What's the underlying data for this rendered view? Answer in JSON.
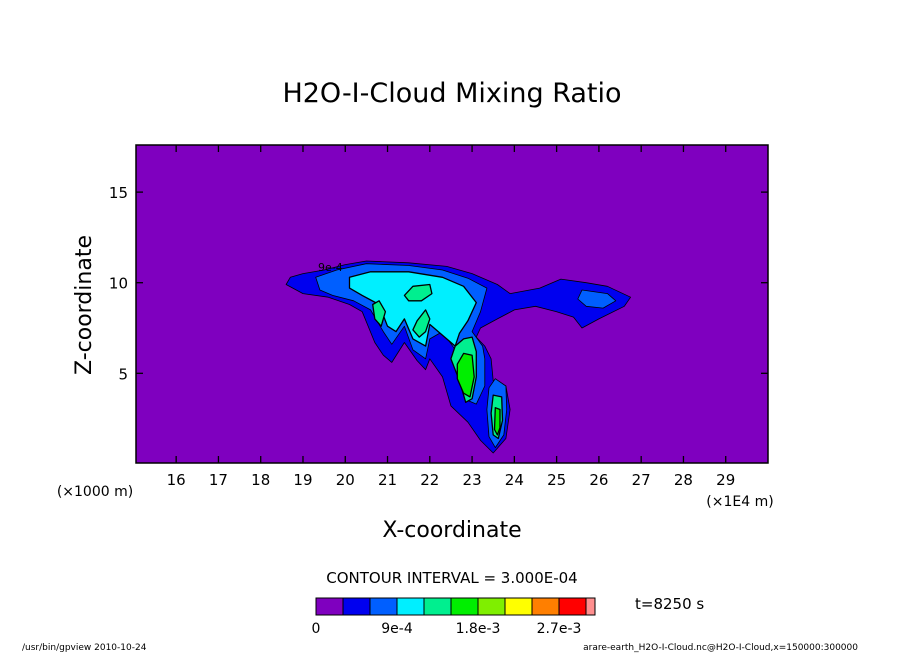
{
  "chart_data": {
    "type": "heatmap",
    "title": "H2O-I-Cloud Mixing Ratio",
    "xlabel": "X-coordinate",
    "ylabel": "Z-coordinate",
    "x_scale_label": "(×1E4 m)",
    "y_scale_label": "(×1000 m)",
    "xlim": [
      15.05,
      30.0
    ],
    "ylim": [
      0.05,
      17.6
    ],
    "x_ticks": [
      16,
      17,
      18,
      19,
      20,
      21,
      22,
      23,
      24,
      25,
      26,
      27,
      28,
      29
    ],
    "y_ticks": [
      5,
      10,
      15
    ],
    "contour_interval_text": "CONTOUR INTERVAL = 3.000E-04",
    "contour_label_text": "9e-4",
    "time_label": "t=8250 s",
    "levels": [
      0,
      0.0003,
      0.0006,
      0.0009,
      0.0012,
      0.0015,
      0.0018,
      0.0021,
      0.0024,
      0.0027,
      0.003
    ],
    "colors": [
      "#7f00bf",
      "#0000ef",
      "#005fff",
      "#00efff",
      "#00ef8f",
      "#00ef00",
      "#7fef00",
      "#ffff00",
      "#ff7f00",
      "#ff0000",
      "#ff8f8f"
    ],
    "colorbar_tick_labels": [
      "0",
      "9e-4",
      "1.8e-3",
      "2.7e-3"
    ],
    "footer_left": "/usr/bin/gpview   2010-10-24",
    "footer_right": "arare-earth_H2O-I-Cloud.nc@H2O-I-Cloud,x=150000:300000",
    "regions": [
      {
        "level": 1,
        "name": "cloud-anvil-outer",
        "points": [
          [
            18.6,
            9.9
          ],
          [
            18.7,
            10.3
          ],
          [
            19.0,
            10.5
          ],
          [
            19.5,
            10.7
          ],
          [
            20.0,
            11.0
          ],
          [
            20.5,
            11.2
          ],
          [
            21.5,
            11.1
          ],
          [
            22.4,
            10.9
          ],
          [
            23.0,
            10.5
          ],
          [
            23.6,
            9.9
          ],
          [
            23.9,
            9.4
          ],
          [
            24.6,
            9.7
          ],
          [
            25.1,
            10.2
          ],
          [
            25.7,
            10.0
          ],
          [
            26.2,
            9.8
          ],
          [
            26.75,
            9.2
          ],
          [
            26.6,
            8.7
          ],
          [
            26.0,
            8.0
          ],
          [
            25.6,
            7.5
          ],
          [
            25.4,
            8.1
          ],
          [
            25.0,
            8.4
          ],
          [
            24.5,
            8.7
          ],
          [
            24.0,
            8.5
          ],
          [
            23.6,
            8.0
          ],
          [
            23.2,
            7.5
          ],
          [
            23.1,
            7.0
          ],
          [
            23.3,
            6.5
          ],
          [
            23.45,
            5.8
          ],
          [
            23.5,
            4.6
          ],
          [
            23.8,
            4.3
          ],
          [
            23.9,
            3.0
          ],
          [
            23.8,
            1.4
          ],
          [
            23.5,
            0.6
          ],
          [
            23.2,
            1.3
          ],
          [
            22.9,
            2.3
          ],
          [
            22.5,
            3.2
          ],
          [
            22.3,
            4.8
          ],
          [
            22.0,
            5.8
          ],
          [
            21.9,
            5.2
          ],
          [
            21.7,
            5.7
          ],
          [
            21.4,
            6.7
          ],
          [
            21.1,
            5.6
          ],
          [
            20.9,
            6.0
          ],
          [
            20.7,
            6.7
          ],
          [
            20.4,
            8.4
          ],
          [
            20.1,
            8.8
          ],
          [
            19.6,
            9.2
          ],
          [
            19.0,
            9.4
          ]
        ]
      },
      {
        "level": 2,
        "name": "cloud-band-2",
        "points": [
          [
            19.3,
            10.3
          ],
          [
            19.8,
            10.7
          ],
          [
            20.5,
            11.05
          ],
          [
            21.5,
            10.95
          ],
          [
            22.3,
            10.7
          ],
          [
            22.9,
            10.25
          ],
          [
            23.35,
            9.7
          ],
          [
            23.2,
            8.4
          ],
          [
            23.0,
            7.3
          ],
          [
            23.25,
            6.5
          ],
          [
            23.3,
            5.8
          ],
          [
            23.3,
            4.3
          ],
          [
            23.1,
            3.3
          ],
          [
            22.9,
            3.5
          ],
          [
            22.7,
            5.0
          ],
          [
            22.6,
            6.3
          ],
          [
            22.3,
            7.3
          ],
          [
            22.0,
            6.9
          ],
          [
            21.9,
            5.8
          ],
          [
            21.6,
            6.3
          ],
          [
            21.4,
            7.6
          ],
          [
            21.1,
            6.6
          ],
          [
            20.9,
            7.3
          ],
          [
            20.6,
            8.5
          ],
          [
            20.2,
            9.0
          ],
          [
            19.7,
            9.3
          ],
          [
            19.4,
            9.6
          ]
        ]
      },
      {
        "level": 2,
        "name": "cloud-column-lower",
        "points": [
          [
            23.55,
            4.7
          ],
          [
            23.8,
            4.3
          ],
          [
            23.82,
            3.0
          ],
          [
            23.75,
            1.6
          ],
          [
            23.55,
            0.9
          ],
          [
            23.4,
            1.5
          ],
          [
            23.35,
            3.0
          ],
          [
            23.4,
            4.2
          ]
        ]
      },
      {
        "level": 2,
        "name": "cloud-anvil-tail",
        "points": [
          [
            25.6,
            9.6
          ],
          [
            26.2,
            9.4
          ],
          [
            26.4,
            9.0
          ],
          [
            26.1,
            8.6
          ],
          [
            25.7,
            8.7
          ],
          [
            25.5,
            9.1
          ]
        ]
      },
      {
        "level": 3,
        "name": "cloud-band-3",
        "points": [
          [
            20.1,
            10.3
          ],
          [
            20.6,
            10.6
          ],
          [
            21.5,
            10.6
          ],
          [
            22.3,
            10.3
          ],
          [
            22.8,
            9.8
          ],
          [
            23.1,
            8.9
          ],
          [
            22.9,
            7.9
          ],
          [
            22.7,
            7.2
          ],
          [
            22.6,
            6.5
          ],
          [
            22.3,
            7.1
          ],
          [
            22.0,
            7.7
          ],
          [
            21.9,
            6.5
          ],
          [
            21.6,
            6.9
          ],
          [
            21.4,
            8.0
          ],
          [
            21.2,
            7.3
          ],
          [
            21.0,
            7.6
          ],
          [
            20.8,
            8.8
          ],
          [
            20.4,
            9.3
          ],
          [
            20.1,
            9.7
          ]
        ]
      },
      {
        "level": 4,
        "name": "cloud-core-left",
        "points": [
          [
            20.65,
            8.8
          ],
          [
            20.8,
            9.0
          ],
          [
            20.95,
            8.4
          ],
          [
            20.85,
            7.6
          ],
          [
            20.7,
            8.0
          ]
        ]
      },
      {
        "level": 4,
        "name": "cloud-core-mid",
        "points": [
          [
            21.7,
            7.9
          ],
          [
            21.9,
            8.5
          ],
          [
            22.0,
            8.0
          ],
          [
            21.9,
            7.3
          ],
          [
            21.75,
            7.0
          ],
          [
            21.6,
            7.4
          ]
        ]
      },
      {
        "level": 4,
        "name": "cloud-core-top",
        "points": [
          [
            21.4,
            9.3
          ],
          [
            21.6,
            9.8
          ],
          [
            22.0,
            9.9
          ],
          [
            22.05,
            9.4
          ],
          [
            21.8,
            9.0
          ],
          [
            21.5,
            9.0
          ]
        ]
      },
      {
        "level": 4,
        "name": "cloud-column-upper",
        "points": [
          [
            22.6,
            6.5
          ],
          [
            22.8,
            6.9
          ],
          [
            23.0,
            7.0
          ],
          [
            23.1,
            6.2
          ],
          [
            23.1,
            4.8
          ],
          [
            23.0,
            3.6
          ],
          [
            22.85,
            3.4
          ],
          [
            22.7,
            4.6
          ],
          [
            22.5,
            5.8
          ]
        ]
      },
      {
        "level": 4,
        "name": "cloud-column-lower-core",
        "points": [
          [
            23.5,
            3.8
          ],
          [
            23.7,
            3.7
          ],
          [
            23.72,
            2.4
          ],
          [
            23.62,
            1.4
          ],
          [
            23.5,
            1.6
          ],
          [
            23.45,
            2.8
          ]
        ]
      },
      {
        "level": 5,
        "name": "cloud-peak-upper",
        "points": [
          [
            22.65,
            5.5
          ],
          [
            22.8,
            6.1
          ],
          [
            23.0,
            6.0
          ],
          [
            23.05,
            4.8
          ],
          [
            22.95,
            3.7
          ],
          [
            22.8,
            3.9
          ],
          [
            22.65,
            4.7
          ]
        ]
      },
      {
        "level": 5,
        "name": "cloud-peak-lower",
        "points": [
          [
            23.55,
            3.1
          ],
          [
            23.66,
            3.0
          ],
          [
            23.66,
            2.0
          ],
          [
            23.6,
            1.6
          ],
          [
            23.53,
            1.9
          ]
        ]
      }
    ]
  }
}
